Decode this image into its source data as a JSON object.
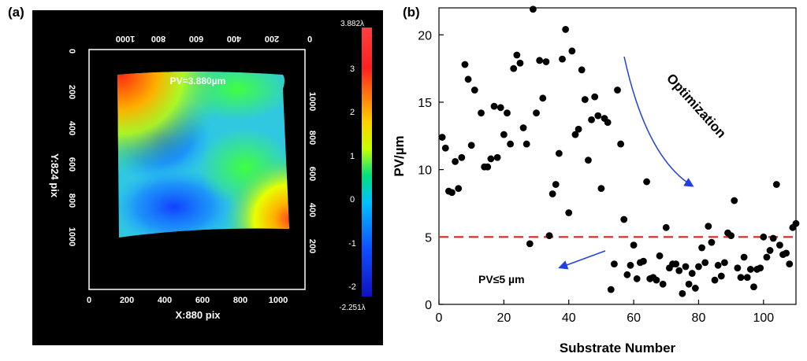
{
  "figure": {
    "label_a": "(a)",
    "label_b": "(b)"
  },
  "surface_map": {
    "pv_text": "PV=3.880µm",
    "x_axis_label": "X:880 pix",
    "y_axis_label": "Y:824 pix",
    "bottom_ticks": [
      "0",
      "200",
      "400",
      "600",
      "800",
      "1000"
    ],
    "top_ticks": [
      "0",
      "200",
      "400",
      "600",
      "800",
      "1000"
    ],
    "left_ticks": [
      "0",
      "200",
      "400",
      "600",
      "800",
      "1000"
    ],
    "right_ticks": [
      "200",
      "400",
      "600",
      "800",
      "1000"
    ],
    "colorbar_max": "3.882λ",
    "colorbar_min": "-2.251λ",
    "colorbar_ticks": [
      "3",
      "2",
      "1",
      "0",
      "-1",
      "-2"
    ],
    "colors": {
      "background": "#000000",
      "frame": "#ffffff"
    }
  },
  "chart_data": {
    "type": "scatter",
    "xlabel": "Substrate Number",
    "ylabel": "PV/µm",
    "xlim": [
      0,
      110
    ],
    "ylim": [
      0,
      22
    ],
    "x_ticks": [
      0,
      20,
      40,
      60,
      80,
      100
    ],
    "y_ticks": [
      0,
      5,
      10,
      15,
      20
    ],
    "grid": false,
    "threshold": {
      "y": 5,
      "color": "#e02020",
      "style": "dashed"
    },
    "annotations": {
      "optimization": "Optimization",
      "threshold_label": "PV≤5 µm"
    },
    "colors": {
      "points": "#000000",
      "arrow": "#1f3fe0"
    },
    "points": [
      [
        1,
        12.4
      ],
      [
        2,
        11.6
      ],
      [
        3,
        8.4
      ],
      [
        4,
        8.3
      ],
      [
        5,
        10.6
      ],
      [
        6,
        8.6
      ],
      [
        7,
        10.9
      ],
      [
        8,
        17.8
      ],
      [
        9,
        16.7
      ],
      [
        10,
        11.8
      ],
      [
        11,
        15.9
      ],
      [
        13,
        14.2
      ],
      [
        14,
        10.2
      ],
      [
        15,
        10.2
      ],
      [
        16,
        10.8
      ],
      [
        17,
        14.7
      ],
      [
        18,
        10.9
      ],
      [
        19,
        14.6
      ],
      [
        20,
        12.6
      ],
      [
        21,
        14.2
      ],
      [
        22,
        11.9
      ],
      [
        23,
        17.5
      ],
      [
        24,
        18.5
      ],
      [
        25,
        17.9
      ],
      [
        26,
        13.1
      ],
      [
        27,
        11.9
      ],
      [
        28,
        4.5
      ],
      [
        29,
        21.9
      ],
      [
        30,
        14.2
      ],
      [
        31,
        18.1
      ],
      [
        32,
        15.3
      ],
      [
        33,
        18.0
      ],
      [
        34,
        5.1
      ],
      [
        35,
        8.2
      ],
      [
        36,
        8.9
      ],
      [
        37,
        11.2
      ],
      [
        38,
        18.2
      ],
      [
        39,
        20.4
      ],
      [
        40,
        6.8
      ],
      [
        41,
        18.8
      ],
      [
        42,
        12.6
      ],
      [
        43,
        13.0
      ],
      [
        44,
        17.4
      ],
      [
        45,
        15.2
      ],
      [
        46,
        10.7
      ],
      [
        47,
        13.7
      ],
      [
        48,
        15.4
      ],
      [
        49,
        14.0
      ],
      [
        50,
        8.6
      ],
      [
        51,
        13.8
      ],
      [
        52,
        13.5
      ],
      [
        53,
        1.1
      ],
      [
        54,
        3.0
      ],
      [
        55,
        15.9
      ],
      [
        56,
        11.9
      ],
      [
        57,
        6.3
      ],
      [
        58,
        2.2
      ],
      [
        59,
        2.9
      ],
      [
        60,
        4.4
      ],
      [
        61,
        1.9
      ],
      [
        62,
        3.1
      ],
      [
        63,
        3.2
      ],
      [
        64,
        9.1
      ],
      [
        65,
        1.9
      ],
      [
        66,
        2.0
      ],
      [
        67,
        1.8
      ],
      [
        68,
        3.6
      ],
      [
        69,
        1.5
      ],
      [
        70,
        5.7
      ],
      [
        71,
        2.7
      ],
      [
        72,
        3.0
      ],
      [
        73,
        3.0
      ],
      [
        74,
        2.5
      ],
      [
        75,
        0.8
      ],
      [
        76,
        2.8
      ],
      [
        77,
        1.5
      ],
      [
        78,
        2.3
      ],
      [
        79,
        1.2
      ],
      [
        80,
        2.8
      ],
      [
        81,
        4.2
      ],
      [
        82,
        3.1
      ],
      [
        83,
        5.8
      ],
      [
        84,
        4.6
      ],
      [
        85,
        1.8
      ],
      [
        86,
        2.9
      ],
      [
        87,
        2.1
      ],
      [
        88,
        3.1
      ],
      [
        89,
        5.3
      ],
      [
        90,
        5.1
      ],
      [
        91,
        7.7
      ],
      [
        92,
        2.7
      ],
      [
        93,
        2.0
      ],
      [
        94,
        3.5
      ],
      [
        95,
        2.0
      ],
      [
        96,
        2.6
      ],
      [
        97,
        1.3
      ],
      [
        98,
        2.6
      ],
      [
        99,
        2.7
      ],
      [
        100,
        5.0
      ],
      [
        101,
        3.5
      ],
      [
        102,
        4.0
      ],
      [
        103,
        4.9
      ],
      [
        104,
        8.9
      ],
      [
        105,
        4.4
      ],
      [
        106,
        3.7
      ],
      [
        107,
        3.8
      ],
      [
        108,
        3.0
      ],
      [
        109,
        5.7
      ],
      [
        110,
        6.0
      ]
    ]
  }
}
